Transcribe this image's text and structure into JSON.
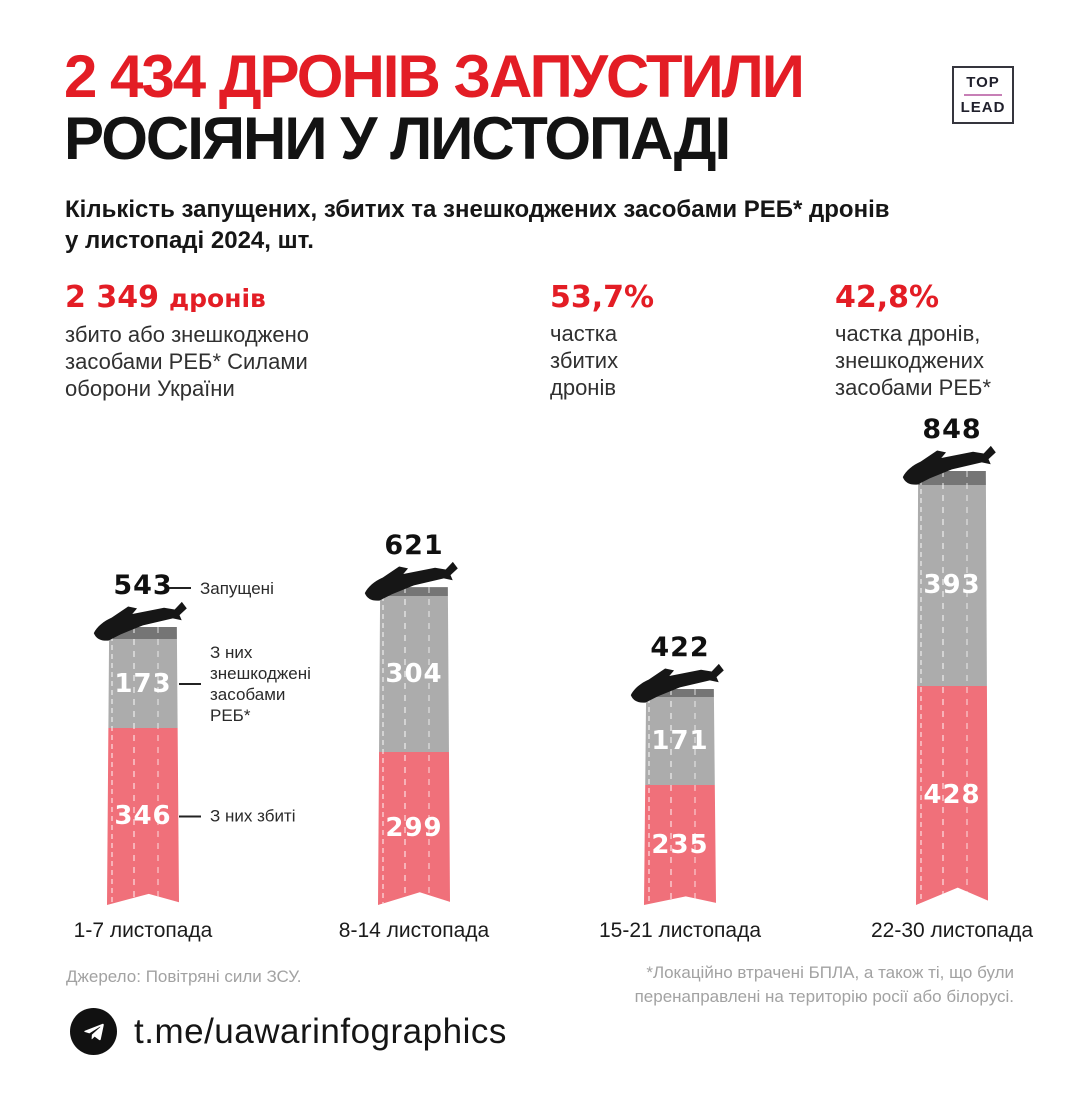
{
  "header": {
    "title_line1": "2 434 ДРОНІВ ЗАПУСТИЛИ",
    "title_line2": "РОСІЯНИ У ЛИСТОПАДІ",
    "logo": {
      "top": "TOP",
      "lead": "LEAD"
    }
  },
  "subtitle": "Кількість запущених, збитих та знешкоджених засобами РЕБ* дронів\nу листопаді 2024, шт.",
  "stats": [
    {
      "value": "2 349",
      "suffix": "дронів",
      "desc": "збито або знешкоджено\nзасобами РЕБ* Силами\nоборони України"
    },
    {
      "value": "53,7%",
      "suffix": "",
      "desc": "частка\nзбитих\nдронів"
    },
    {
      "value": "42,8%",
      "suffix": "",
      "desc": "частка дронів,\nзнешкоджених\nзасобами РЕБ*"
    }
  ],
  "chart_data": {
    "type": "bar",
    "stacked": true,
    "categories": [
      "1-7 листопада",
      "8-14 листопада",
      "15-21 листопада",
      "22-30 листопада"
    ],
    "totals": [
      543,
      621,
      422,
      848
    ],
    "series": [
      {
        "name": "З них знешкоджені засобами РЕБ*",
        "values": [
          173,
          304,
          171,
          393
        ],
        "color": "#acacac"
      },
      {
        "name": "З них збиті",
        "values": [
          346,
          299,
          235,
          428
        ],
        "color": "#f0707a"
      }
    ],
    "remainder_color": "#757575",
    "annotations": {
      "launched": "Запущені",
      "reb": "З них знешкоджені\nзасобами РЕБ*",
      "shot": "З них збиті"
    },
    "units": "шт."
  },
  "footer": {
    "source": "Джерело: Повітряні сили ЗСУ.",
    "note": "*Локаційно втрачені БПЛА, а також ті, що були\nперенаправлені на територію росії або білорусі.",
    "telegram": "t.me/uawarinfographics"
  },
  "colors": {
    "accent_red": "#e31d25",
    "bar_gray": "#acacac",
    "bar_red": "#f0707a",
    "bar_cap": "#757575",
    "muted_gray": "#a2a2a2",
    "logo_line": "#c77fb6"
  }
}
